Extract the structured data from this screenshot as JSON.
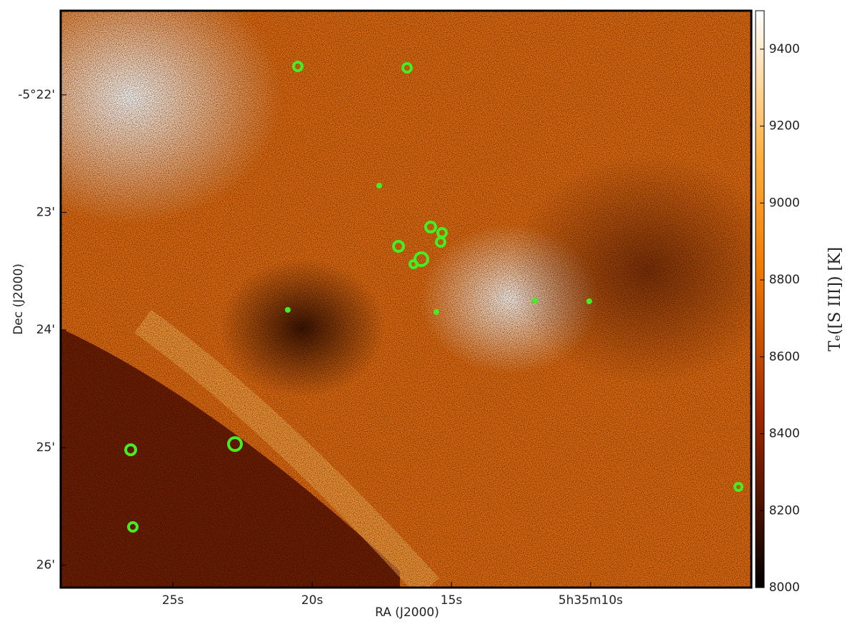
{
  "chart_data": {
    "type": "image",
    "xlabel": "RA (J2000)",
    "ylabel": "Dec (J2000)",
    "xlim": [
      29.03,
      4.23
    ],
    "xticks": [
      {
        "value": 25,
        "label": "25s"
      },
      {
        "value": 20,
        "label": "20s"
      },
      {
        "value": 15,
        "label": "15s"
      },
      {
        "value": 10,
        "label": "5h35m10s"
      }
    ],
    "ylim": [
      21.285,
      26.19
    ],
    "yticks": [
      {
        "value": 22,
        "label": "-5°22'"
      },
      {
        "value": 23,
        "label": "23'"
      },
      {
        "value": 24,
        "label": "24'"
      },
      {
        "value": 25,
        "label": "25'"
      },
      {
        "value": 26,
        "label": "26'"
      }
    ],
    "colorbar": {
      "label": "Tₑ([S III]) [K]",
      "clim": [
        8000,
        9500
      ],
      "ticks": [
        8000,
        8200,
        8400,
        8600,
        8800,
        9000,
        9200,
        9400
      ]
    }
  }
}
